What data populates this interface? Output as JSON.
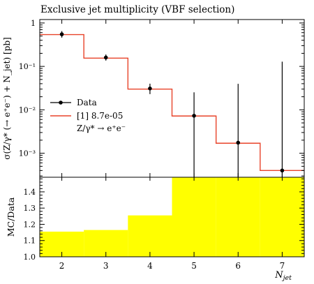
{
  "title": "Exclusive jet multiplicity (VBF selection)",
  "colors": {
    "mc": "#e8432a",
    "data": "#000000",
    "ratio_band": "#ffff00"
  },
  "chart_data": [
    {
      "type": "step",
      "panel": "main",
      "ylabel": "σ(Z/γ* (→ e⁺e⁻) + N_jet) [pb]",
      "yscale": "log",
      "ylim": [
        0.00028,
        1.2
      ],
      "xlim": [
        1.5,
        7.5
      ],
      "ytick_labels": [
        "1",
        "10⁻¹",
        "10⁻²",
        "10⁻³"
      ],
      "ytick_values": [
        1,
        0.1,
        0.01,
        0.001
      ],
      "legend": {
        "position": "middle-left",
        "data_label": "Data",
        "mc_label": "[1] 8.7e-05",
        "mc_sublabel": "Z/γ* → e⁺e⁻"
      },
      "mc": {
        "bin_edges": [
          1.5,
          2.5,
          3.5,
          4.5,
          5.5,
          6.5,
          7.5
        ],
        "values": [
          0.54,
          0.155,
          0.03,
          0.0072,
          0.0017,
          0.0004
        ]
      },
      "data": {
        "x": [
          2,
          3,
          4,
          5,
          6,
          7
        ],
        "y": [
          0.55,
          0.16,
          0.031,
          0.0073,
          0.00175,
          0.0004
        ],
        "err_up": [
          0.1,
          0.028,
          0.009,
          0.018,
          0.038,
          0.128
        ],
        "err_down": [
          0.09,
          0.024,
          0.008,
          0.0073,
          0.00175,
          0.0004
        ]
      }
    },
    {
      "type": "band",
      "panel": "ratio",
      "ylabel": "MC/Data",
      "xlabel": "N_jet",
      "ylim": [
        1.0,
        1.49
      ],
      "xlim": [
        1.5,
        7.5
      ],
      "ytick_values": [
        1.0,
        1.1,
        1.2,
        1.3,
        1.4
      ],
      "ytick_labels": [
        "1.0",
        "1.1",
        "1.2",
        "1.3",
        "1.4"
      ],
      "xtick_values": [
        2,
        3,
        4,
        5,
        6,
        7
      ],
      "xtick_labels": [
        "2",
        "3",
        "4",
        "5",
        "6",
        "7"
      ],
      "bin_edges": [
        1.5,
        2.5,
        3.5,
        4.5,
        5.5,
        6.5,
        7.5
      ],
      "band_upper": [
        1.155,
        1.165,
        1.255,
        1.49,
        1.49,
        1.49
      ]
    }
  ]
}
